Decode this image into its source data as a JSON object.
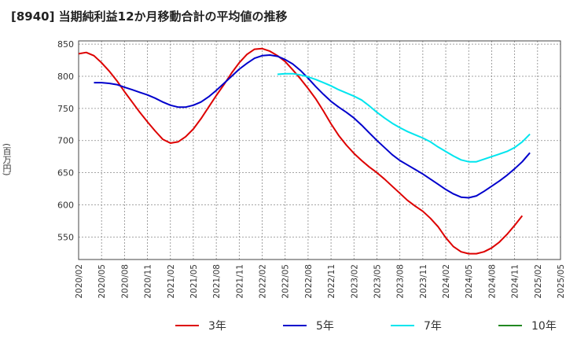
{
  "chart_data": {
    "type": "line",
    "title": "[8940]  当期純利益12か月移動合計の平均値の推移",
    "ylabel": "(百万円)",
    "xlabel": "",
    "ylim": [
      515,
      855
    ],
    "yticks": [
      550,
      600,
      650,
      700,
      750,
      800,
      850
    ],
    "xlim": [
      "2020-02",
      "2025-05"
    ],
    "xticks": [
      "2020/02",
      "2020/05",
      "2020/08",
      "2020/11",
      "2021/02",
      "2021/05",
      "2021/08",
      "2021/11",
      "2022/02",
      "2022/05",
      "2022/08",
      "2022/11",
      "2023/02",
      "2023/05",
      "2023/08",
      "2023/11",
      "2024/02",
      "2024/05",
      "2024/08",
      "2024/11",
      "2025/02",
      "2025/05"
    ],
    "grid": true,
    "legend": "bottom",
    "series": [
      {
        "name": "3年",
        "color": "#dd0000",
        "points": [
          [
            "2020-02",
            835
          ],
          [
            "2020-03",
            837
          ],
          [
            "2020-04",
            832
          ],
          [
            "2020-05",
            821
          ],
          [
            "2020-06",
            808
          ],
          [
            "2020-07",
            793
          ],
          [
            "2020-08",
            776
          ],
          [
            "2020-09",
            760
          ],
          [
            "2020-10",
            744
          ],
          [
            "2020-11",
            729
          ],
          [
            "2020-12",
            715
          ],
          [
            "2021-01",
            702
          ],
          [
            "2021-02",
            696
          ],
          [
            "2021-03",
            698
          ],
          [
            "2021-04",
            706
          ],
          [
            "2021-05",
            718
          ],
          [
            "2021-06",
            734
          ],
          [
            "2021-07",
            752
          ],
          [
            "2021-08",
            770
          ],
          [
            "2021-09",
            787
          ],
          [
            "2021-10",
            805
          ],
          [
            "2021-11",
            821
          ],
          [
            "2021-12",
            834
          ],
          [
            "2022-01",
            842
          ],
          [
            "2022-02",
            843
          ],
          [
            "2022-03",
            839
          ],
          [
            "2022-04",
            832
          ],
          [
            "2022-05",
            823
          ],
          [
            "2022-06",
            810
          ],
          [
            "2022-07",
            796
          ],
          [
            "2022-08",
            781
          ],
          [
            "2022-09",
            765
          ],
          [
            "2022-10",
            746
          ],
          [
            "2022-11",
            726
          ],
          [
            "2022-12",
            708
          ],
          [
            "2023-01",
            693
          ],
          [
            "2023-02",
            680
          ],
          [
            "2023-03",
            669
          ],
          [
            "2023-04",
            659
          ],
          [
            "2023-05",
            650
          ],
          [
            "2023-06",
            640
          ],
          [
            "2023-07",
            629
          ],
          [
            "2023-08",
            618
          ],
          [
            "2023-09",
            607
          ],
          [
            "2023-10",
            598
          ],
          [
            "2023-11",
            590
          ],
          [
            "2023-12",
            579
          ],
          [
            "2024-01",
            566
          ],
          [
            "2024-02",
            549
          ],
          [
            "2024-03",
            535
          ],
          [
            "2024-04",
            527
          ],
          [
            "2024-05",
            524
          ],
          [
            "2024-06",
            524
          ],
          [
            "2024-07",
            527
          ],
          [
            "2024-08",
            533
          ],
          [
            "2024-09",
            542
          ],
          [
            "2024-10",
            554
          ],
          [
            "2024-11",
            568
          ],
          [
            "2024-12",
            583
          ]
        ]
      },
      {
        "name": "5年",
        "color": "#0000cc",
        "points": [
          [
            "2020-04",
            790
          ],
          [
            "2020-05",
            790
          ],
          [
            "2020-06",
            789
          ],
          [
            "2020-07",
            787
          ],
          [
            "2020-08",
            783
          ],
          [
            "2020-09",
            779
          ],
          [
            "2020-10",
            775
          ],
          [
            "2020-11",
            771
          ],
          [
            "2020-12",
            766
          ],
          [
            "2021-01",
            760
          ],
          [
            "2021-02",
            755
          ],
          [
            "2021-03",
            752
          ],
          [
            "2021-04",
            752
          ],
          [
            "2021-05",
            755
          ],
          [
            "2021-06",
            760
          ],
          [
            "2021-07",
            768
          ],
          [
            "2021-08",
            778
          ],
          [
            "2021-09",
            789
          ],
          [
            "2021-10",
            800
          ],
          [
            "2021-11",
            811
          ],
          [
            "2021-12",
            820
          ],
          [
            "2022-01",
            828
          ],
          [
            "2022-02",
            832
          ],
          [
            "2022-03",
            833
          ],
          [
            "2022-04",
            831
          ],
          [
            "2022-05",
            826
          ],
          [
            "2022-06",
            819
          ],
          [
            "2022-07",
            809
          ],
          [
            "2022-08",
            797
          ],
          [
            "2022-09",
            784
          ],
          [
            "2022-10",
            772
          ],
          [
            "2022-11",
            761
          ],
          [
            "2022-12",
            752
          ],
          [
            "2023-01",
            744
          ],
          [
            "2023-02",
            735
          ],
          [
            "2023-03",
            724
          ],
          [
            "2023-04",
            712
          ],
          [
            "2023-05",
            700
          ],
          [
            "2023-06",
            689
          ],
          [
            "2023-07",
            678
          ],
          [
            "2023-08",
            669
          ],
          [
            "2023-09",
            662
          ],
          [
            "2023-10",
            655
          ],
          [
            "2023-11",
            648
          ],
          [
            "2023-12",
            640
          ],
          [
            "2024-01",
            632
          ],
          [
            "2024-02",
            624
          ],
          [
            "2024-03",
            617
          ],
          [
            "2024-04",
            612
          ],
          [
            "2024-05",
            611
          ],
          [
            "2024-06",
            614
          ],
          [
            "2024-07",
            621
          ],
          [
            "2024-08",
            629
          ],
          [
            "2024-09",
            637
          ],
          [
            "2024-10",
            646
          ],
          [
            "2024-11",
            656
          ],
          [
            "2024-12",
            667
          ],
          [
            "2025-01",
            681
          ]
        ]
      },
      {
        "name": "7年",
        "color": "#00e5ee",
        "points": [
          [
            "2022-04",
            803
          ],
          [
            "2022-05",
            804
          ],
          [
            "2022-06",
            804
          ],
          [
            "2022-07",
            802
          ],
          [
            "2022-08",
            799
          ],
          [
            "2022-09",
            795
          ],
          [
            "2022-10",
            790
          ],
          [
            "2022-11",
            785
          ],
          [
            "2022-12",
            779
          ],
          [
            "2023-01",
            774
          ],
          [
            "2023-02",
            769
          ],
          [
            "2023-03",
            763
          ],
          [
            "2023-04",
            754
          ],
          [
            "2023-05",
            744
          ],
          [
            "2023-06",
            735
          ],
          [
            "2023-07",
            727
          ],
          [
            "2023-08",
            720
          ],
          [
            "2023-09",
            714
          ],
          [
            "2023-10",
            709
          ],
          [
            "2023-11",
            704
          ],
          [
            "2023-12",
            698
          ],
          [
            "2024-01",
            690
          ],
          [
            "2024-02",
            683
          ],
          [
            "2024-03",
            676
          ],
          [
            "2024-04",
            670
          ],
          [
            "2024-05",
            667
          ],
          [
            "2024-06",
            667
          ],
          [
            "2024-07",
            671
          ],
          [
            "2024-08",
            675
          ],
          [
            "2024-09",
            679
          ],
          [
            "2024-10",
            683
          ],
          [
            "2024-11",
            689
          ],
          [
            "2024-12",
            698
          ],
          [
            "2025-01",
            710
          ]
        ]
      },
      {
        "name": "10年",
        "color": "#228822",
        "points": []
      }
    ]
  }
}
